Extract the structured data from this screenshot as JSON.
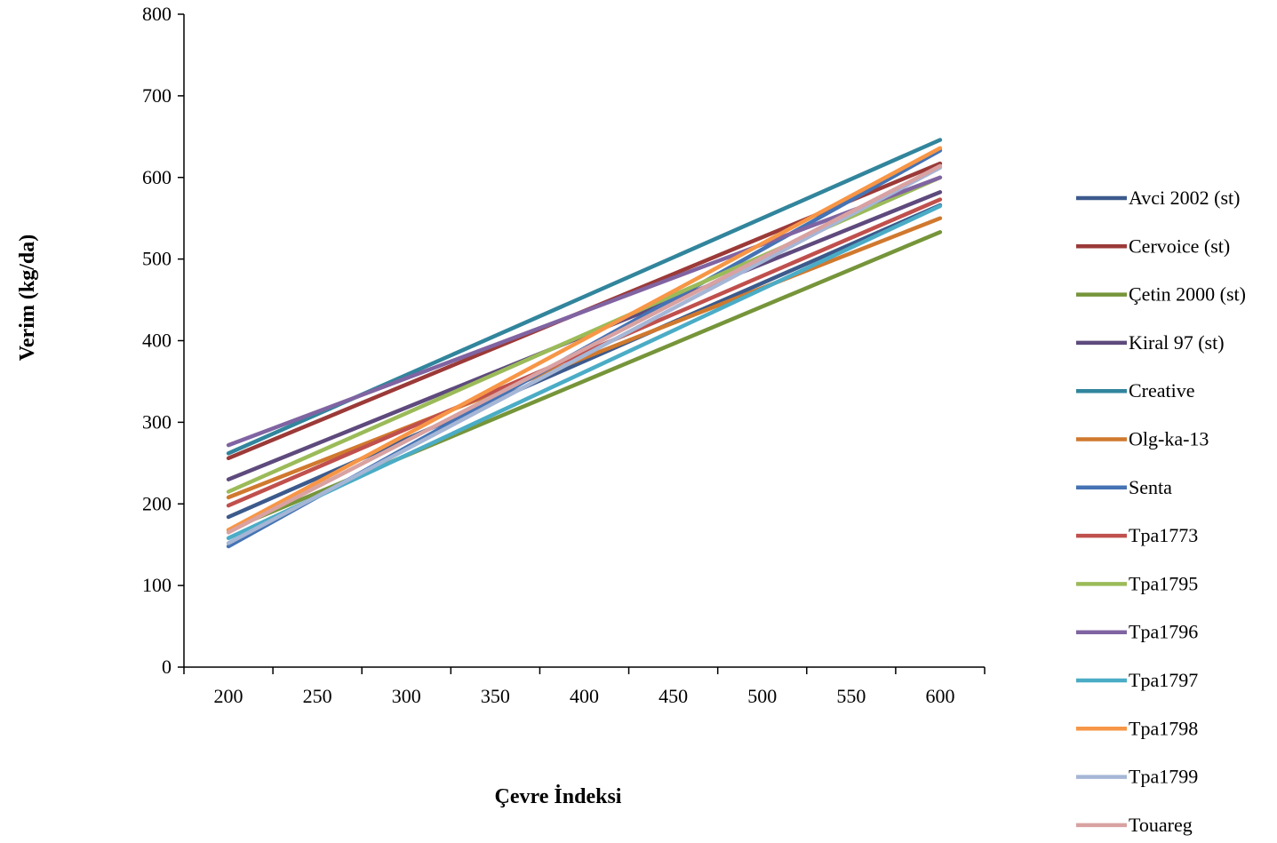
{
  "chart_data": {
    "type": "line",
    "title": "",
    "xlabel": "Çevre İndeksi",
    "ylabel": "Verim (kg/da)",
    "x": [
      200,
      600
    ],
    "xlim": [
      175,
      625
    ],
    "ylim": [
      0,
      800
    ],
    "xticks": [
      200,
      250,
      300,
      350,
      400,
      450,
      500,
      550,
      600
    ],
    "yticks": [
      0,
      100,
      200,
      300,
      400,
      500,
      600,
      700,
      800
    ],
    "grid": false,
    "legend_position": "right",
    "series": [
      {
        "name": "Avci 2002 (st)",
        "color": "#3C5A8C",
        "values": [
          184,
          566
        ]
      },
      {
        "name": "Cervoice (st)",
        "color": "#9B3A38",
        "values": [
          256,
          617
        ]
      },
      {
        "name": "Çetin 2000 (st)",
        "color": "#76953A",
        "values": [
          168,
          533
        ]
      },
      {
        "name": "Kiral 97 (st)",
        "color": "#5E4A7D",
        "values": [
          230,
          582
        ]
      },
      {
        "name": "Creative",
        "color": "#31859C",
        "values": [
          262,
          646
        ]
      },
      {
        "name": "Olg-ka-13",
        "color": "#D0792E",
        "values": [
          208,
          550
        ]
      },
      {
        "name": "Senta",
        "color": "#4573B4",
        "values": [
          148,
          633
        ]
      },
      {
        "name": "Tpa1773",
        "color": "#C0504D",
        "values": [
          198,
          573
        ]
      },
      {
        "name": "Tpa1795",
        "color": "#9BBB59",
        "values": [
          215,
          600
        ]
      },
      {
        "name": "Tpa1796",
        "color": "#8064A2",
        "values": [
          272,
          600
        ]
      },
      {
        "name": "Tpa1797",
        "color": "#4BACC6",
        "values": [
          158,
          565
        ]
      },
      {
        "name": "Tpa1798",
        "color": "#F79646",
        "values": [
          168,
          636
        ]
      },
      {
        "name": "Tpa1799",
        "color": "#A5B6D6",
        "values": [
          152,
          612
        ]
      },
      {
        "name": "Touareg",
        "color": "#D9A2A2",
        "values": [
          165,
          614
        ]
      }
    ]
  }
}
